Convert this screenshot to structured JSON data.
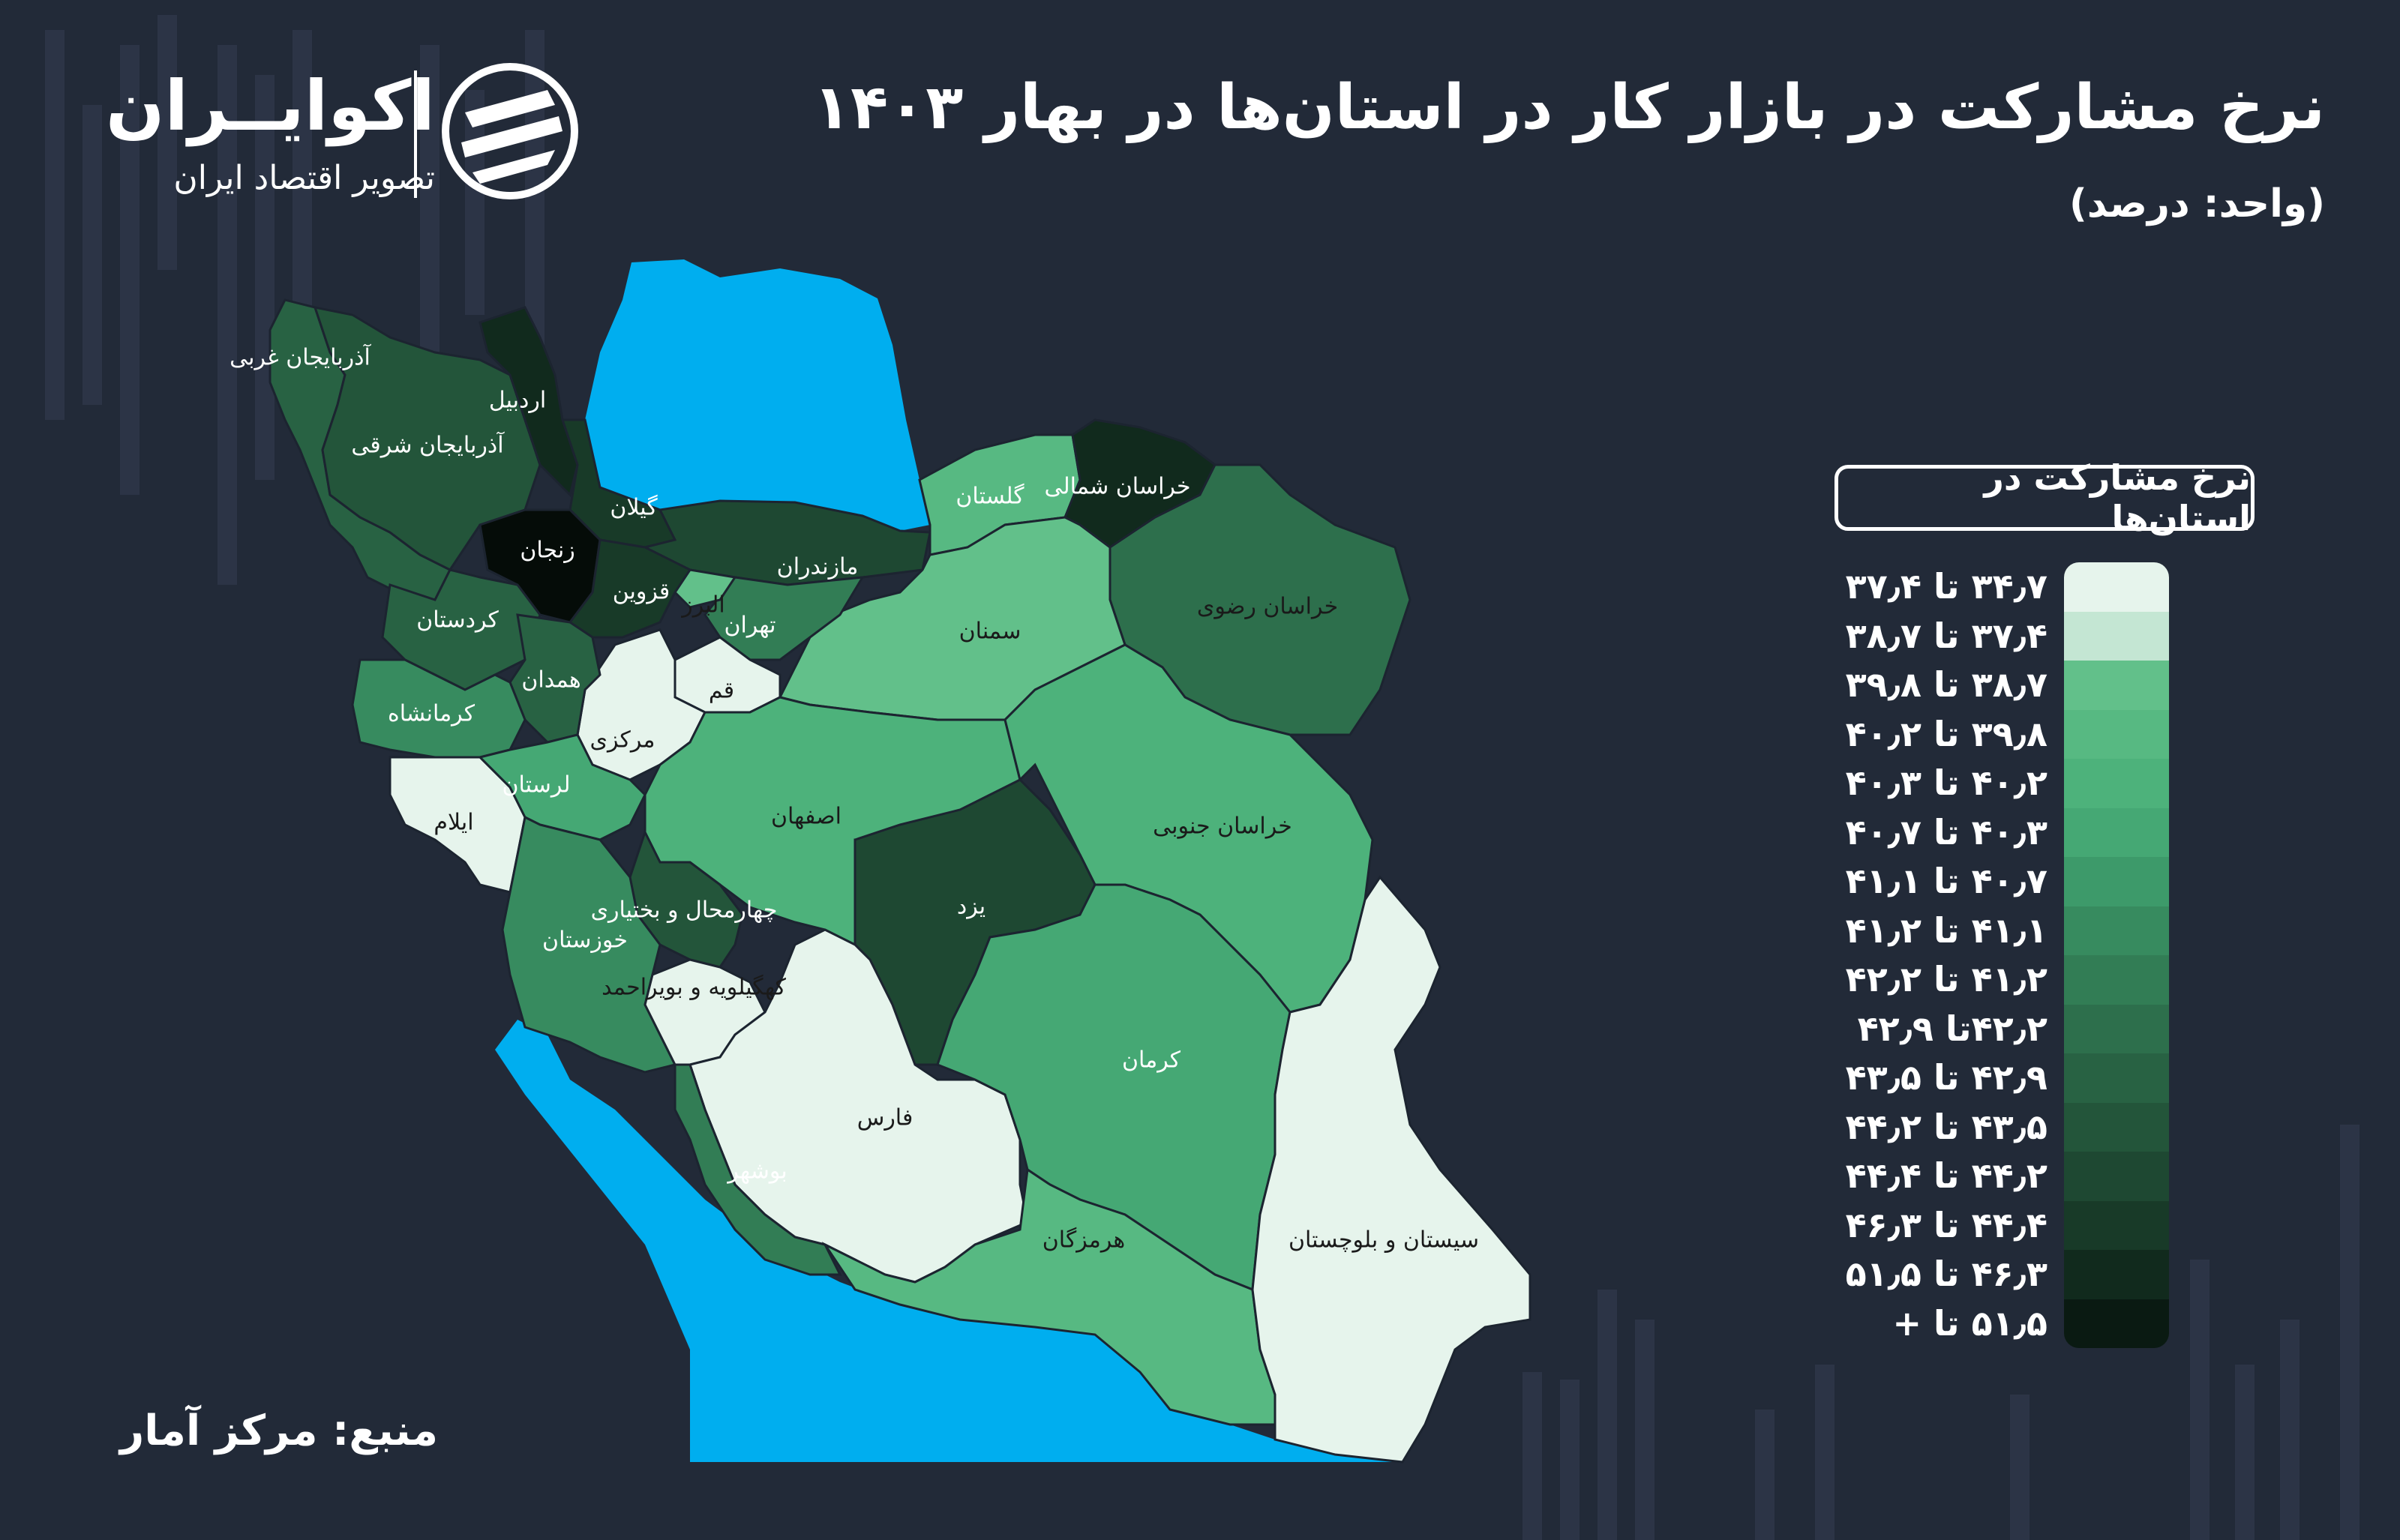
{
  "header": {
    "title": "نرخ مشارکت در بازار کار در استان‌ها در بهار ۱۴۰۳",
    "unit": "(واحد: درصد)"
  },
  "brand": {
    "name": "اکوایــران",
    "subtitle": "تصویر اقتصاد ایران"
  },
  "source": "منبع: مرکز آمار",
  "legend": {
    "title": "نرخ مشارکت در استان‌ها",
    "items": [
      {
        "label": "۳۴٫۷ تا ۳۷٫۴",
        "color": "#e6f4ec"
      },
      {
        "label": "۳۷٫۴ تا ۳۸٫۷",
        "color": "#c4e6d3"
      },
      {
        "label": "۳۸٫۷ تا ۳۹٫۸",
        "color": "#62c08a"
      },
      {
        "label": "۳۹٫۸ تا ۴۰٫۲",
        "color": "#57b982"
      },
      {
        "label": "۴۰٫۲ تا ۴۰٫۳",
        "color": "#4db27b"
      },
      {
        "label": "۴۰٫۳ تا ۴۰٫۷",
        "color": "#45a874"
      },
      {
        "label": "۴۰٫۷ تا ۴۱٫۱",
        "color": "#3d9a6a"
      },
      {
        "label": "۴۱٫۱ تا ۴۱٫۲",
        "color": "#378b5f"
      },
      {
        "label": "۴۱٫۲ تا ۴۲٫۲",
        "color": "#327d55"
      },
      {
        "label": "۴۲٫۲تا ۴۲٫۹",
        "color": "#2d6f4c"
      },
      {
        "label": "۴۲٫۹ تا ۴۳٫۵",
        "color": "#286243"
      },
      {
        "label": "۴۳٫۵ تا ۴۴٫۲",
        "color": "#23553a"
      },
      {
        "label": "۴۴٫۲ تا ۴۴٫۴",
        "color": "#1e4832"
      },
      {
        "label": "۴۴٫۴ تا ۴۶٫۳",
        "color": "#183a28"
      },
      {
        "label": "۴۶٫۳ تا ۵۱٫۵",
        "color": "#112a1d"
      },
      {
        "label": "۵۱٫۵ تا +",
        "color": "#0a1a12"
      }
    ]
  },
  "water_color": "#00aeef",
  "provinces": [
    {
      "id": "west-azarbaijan",
      "name": "آذربایجان غربی",
      "color": "#286243",
      "label_color": "#ffffff"
    },
    {
      "id": "east-azarbaijan",
      "name": "آذربایجان شرقی",
      "color": "#23553a",
      "label_color": "#ffffff"
    },
    {
      "id": "ardabil",
      "name": "اردبیل",
      "color": "#112a1d",
      "label_color": "#ffffff"
    },
    {
      "id": "gilan",
      "name": "گیلان",
      "color": "#183a28",
      "label_color": "#ffffff"
    },
    {
      "id": "zanjan",
      "name": "زنجان",
      "color": "#050c08",
      "label_color": "#ffffff"
    },
    {
      "id": "mazandaran",
      "name": "مازندران",
      "color": "#1e4832",
      "label_color": "#ffffff"
    },
    {
      "id": "golestan",
      "name": "گلستان",
      "color": "#57b982",
      "label_color": "#ffffff"
    },
    {
      "id": "north-khorasan",
      "name": "خراسان شمالی",
      "color": "#112a1d",
      "label_color": "#ffffff"
    },
    {
      "id": "razavi-khorasan",
      "name": "خراسان رضوی",
      "color": "#2d6f4c",
      "label_color": "#1a1a1a"
    },
    {
      "id": "semnan",
      "name": "سمنان",
      "color": "#62c08a",
      "label_color": "#1a1a1a"
    },
    {
      "id": "tehran",
      "name": "تهران",
      "color": "#327d55",
      "label_color": "#ffffff"
    },
    {
      "id": "alborz",
      "name": "البرز",
      "color": "#62c08a",
      "label_color": "#1a1a1a"
    },
    {
      "id": "qazvin",
      "name": "قزوین",
      "color": "#183a28",
      "label_color": "#ffffff"
    },
    {
      "id": "qom",
      "name": "قم",
      "color": "#e6f4ec",
      "label_color": "#1a1a1a"
    },
    {
      "id": "markazi",
      "name": "مرکزی",
      "color": "#e6f4ec",
      "label_color": "#1a1a1a"
    },
    {
      "id": "kurdistan",
      "name": "کردستان",
      "color": "#286243",
      "label_color": "#ffffff"
    },
    {
      "id": "hamadan",
      "name": "همدان",
      "color": "#286243",
      "label_color": "#ffffff"
    },
    {
      "id": "kermanshah",
      "name": "کرمانشاه",
      "color": "#378b5f",
      "label_color": "#ffffff"
    },
    {
      "id": "ilam",
      "name": "ایلام",
      "color": "#e6f4ec",
      "label_color": "#1a1a1a"
    },
    {
      "id": "lorestan",
      "name": "لرستان",
      "color": "#45a874",
      "label_color": "#ffffff"
    },
    {
      "id": "isfahan",
      "name": "اصفهان",
      "color": "#4db27b",
      "label_color": "#1a1a1a"
    },
    {
      "id": "south-khorasan",
      "name": "خراسان جنوبی",
      "color": "#4db27b",
      "label_color": "#1a1a1a"
    },
    {
      "id": "yazd",
      "name": "یزد",
      "color": "#1e4832",
      "label_color": "#ffffff"
    },
    {
      "id": "chaharmahal",
      "name": "چهارمحال و بختیاری",
      "color": "#23553a",
      "label_color": "#ffffff"
    },
    {
      "id": "khuzestan",
      "name": "خوزستان",
      "color": "#378b5f",
      "label_color": "#ffffff"
    },
    {
      "id": "kohgiluyeh",
      "name": "کهگیلویه و بویراحمد",
      "color": "#e6f4ec",
      "label_color": "#1a1a1a"
    },
    {
      "id": "fars",
      "name": "فارس",
      "color": "#e6f4ec",
      "label_color": "#1a1a1a"
    },
    {
      "id": "kerman",
      "name": "کرمان",
      "color": "#45a874",
      "label_color": "#ffffff"
    },
    {
      "id": "bushehr",
      "name": "بوشهر",
      "color": "#327d55",
      "label_color": "#ffffff"
    },
    {
      "id": "hormozgan",
      "name": "هرمزگان",
      "color": "#57b982",
      "label_color": "#1a1a1a"
    },
    {
      "id": "sistan-baluchestan",
      "name": "سیستان و بلوچستان",
      "color": "#e6f4ec",
      "label_color": "#1a1a1a"
    }
  ]
}
